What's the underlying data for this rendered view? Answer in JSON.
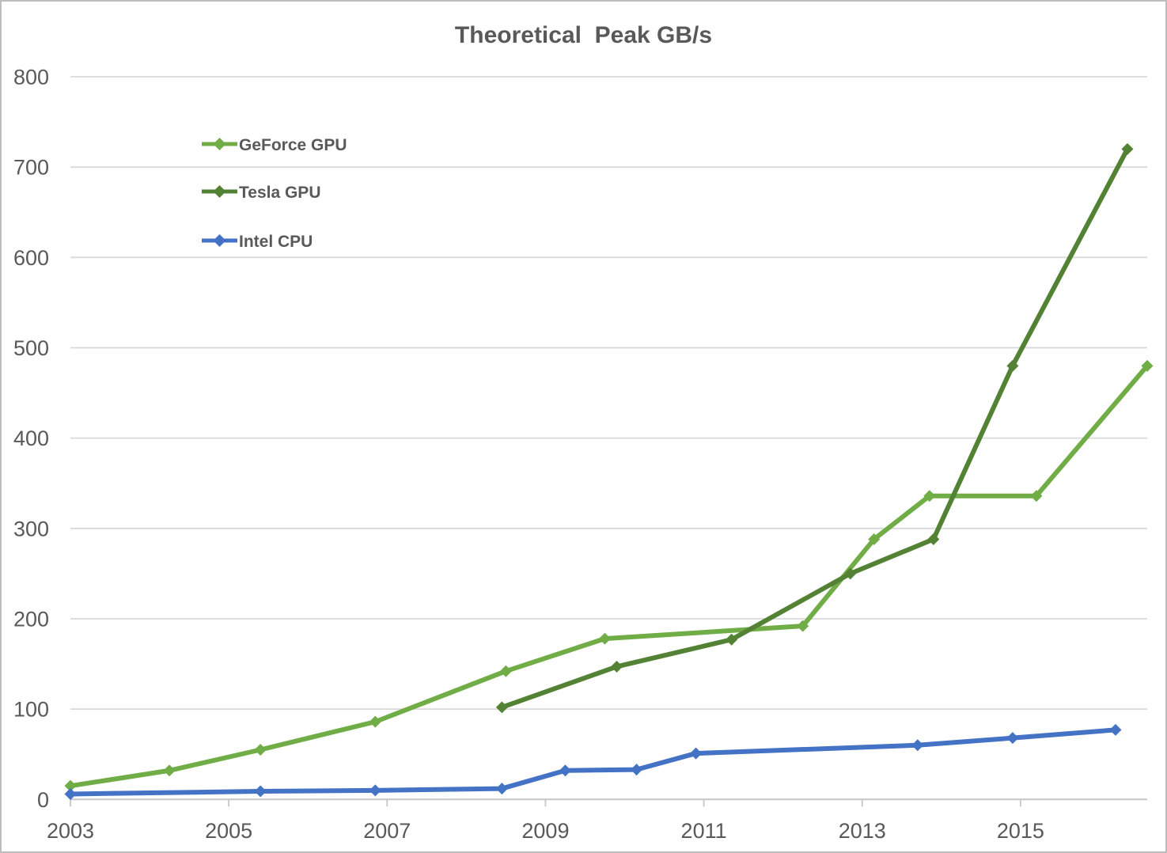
{
  "chart_data": {
    "type": "line",
    "title": "Theoretical  Peak GB/s",
    "xlabel": "",
    "ylabel": "",
    "x_axis": {
      "ticks": [
        2003,
        2005,
        2007,
        2009,
        2011,
        2013,
        2015
      ],
      "range": [
        2003,
        2016.6
      ]
    },
    "y_axis": {
      "ticks": [
        0,
        100,
        200,
        300,
        400,
        500,
        600,
        700,
        800
      ],
      "range": [
        0,
        800
      ]
    },
    "grid": "horizontal-only",
    "legend_position": "inside-top-left",
    "marker": "diamond",
    "series": [
      {
        "name": "GeForce GPU",
        "color": "#70AD47",
        "points": [
          [
            2003.0,
            15
          ],
          [
            2004.25,
            32
          ],
          [
            2005.4,
            55
          ],
          [
            2006.85,
            86
          ],
          [
            2008.5,
            142
          ],
          [
            2009.75,
            178
          ],
          [
            2012.25,
            192
          ],
          [
            2013.15,
            288
          ],
          [
            2013.85,
            336
          ],
          [
            2015.2,
            336
          ],
          [
            2016.6,
            480
          ]
        ]
      },
      {
        "name": "Tesla GPU",
        "color": "#548235",
        "points": [
          [
            2008.45,
            102
          ],
          [
            2009.9,
            147
          ],
          [
            2011.35,
            177
          ],
          [
            2012.85,
            250
          ],
          [
            2013.9,
            288
          ],
          [
            2014.9,
            480
          ],
          [
            2016.35,
            720
          ]
        ]
      },
      {
        "name": "Intel CPU",
        "color": "#4472C4",
        "points": [
          [
            2003.0,
            6
          ],
          [
            2005.4,
            9
          ],
          [
            2006.85,
            10
          ],
          [
            2008.45,
            12
          ],
          [
            2009.25,
            32
          ],
          [
            2010.15,
            33
          ],
          [
            2010.9,
            51
          ],
          [
            2013.7,
            60
          ],
          [
            2014.9,
            68
          ],
          [
            2016.2,
            77
          ]
        ]
      }
    ],
    "colors": {
      "text": "#595959",
      "gridline": "#D9D9D9",
      "axis_line": "#C6C6C6",
      "background": "#FFFFFF",
      "frame_border": "#BDBDBD"
    }
  }
}
